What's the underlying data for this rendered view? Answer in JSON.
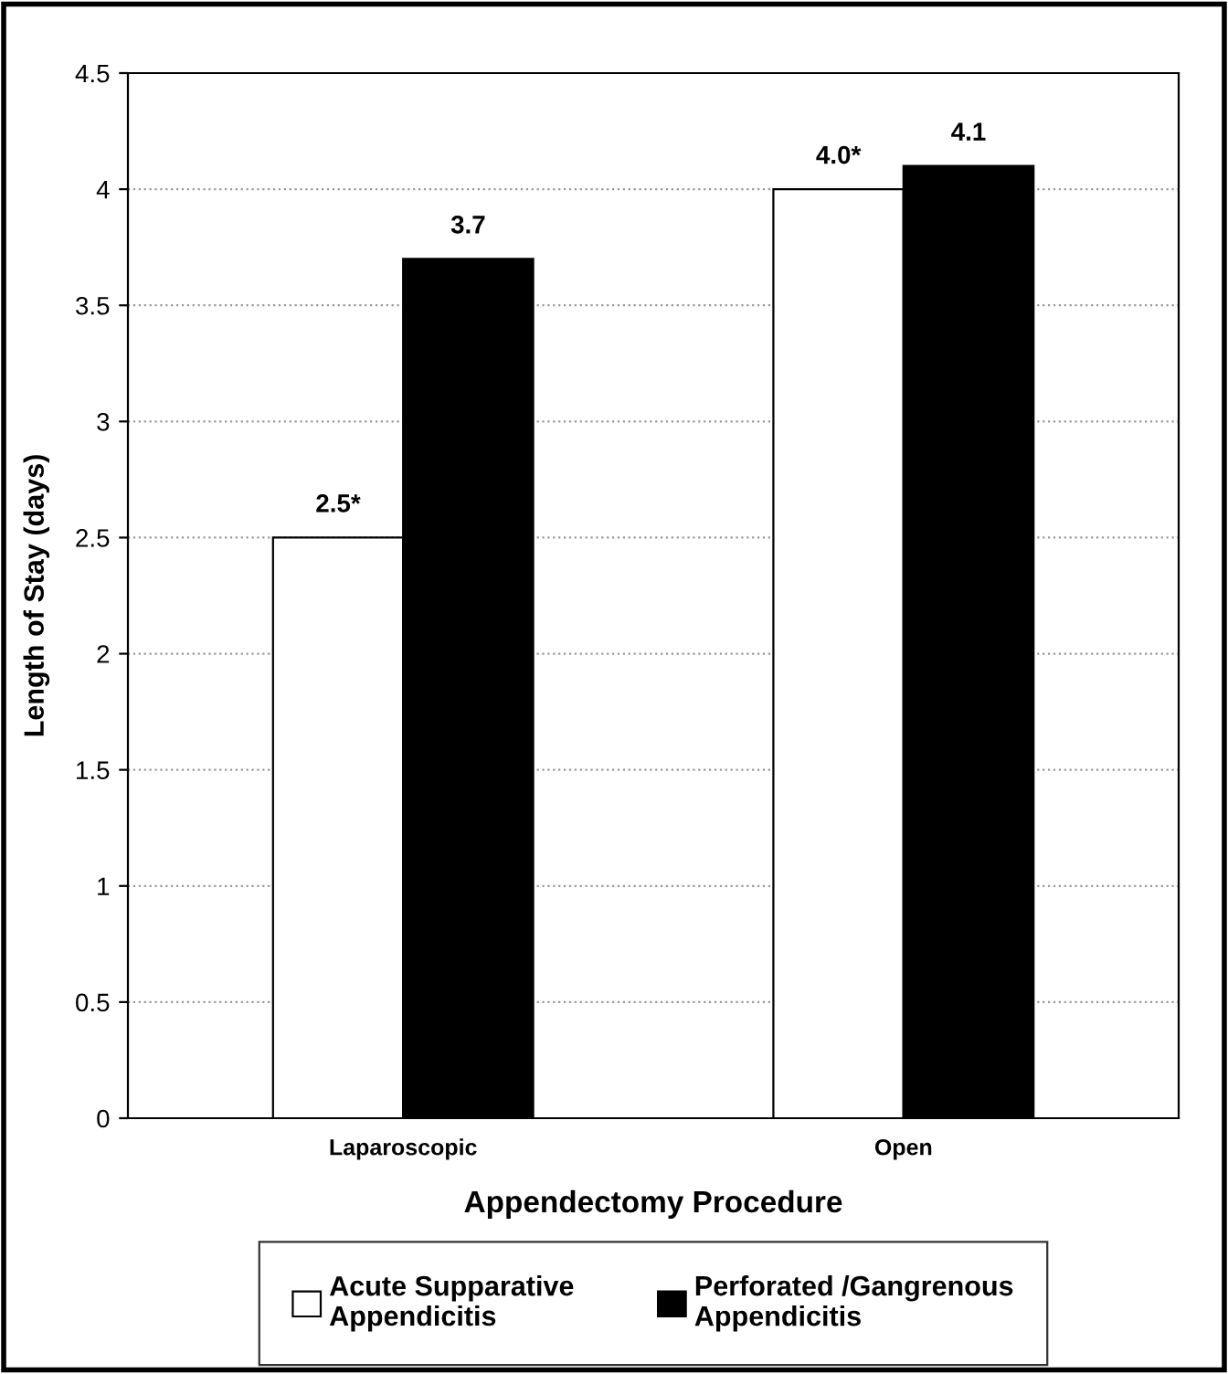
{
  "chart_data": {
    "type": "bar",
    "xlabel": "Appendectomy Procedure",
    "ylabel": "Length of Stay (days)",
    "categories": [
      "Laparoscopic",
      "Open"
    ],
    "series": [
      {
        "name": "Acute Supparative\nAppendicitis",
        "color": "#ffffff",
        "values": [
          2.5,
          4.0
        ],
        "value_labels": [
          "2.5*",
          "4.0*"
        ]
      },
      {
        "name": "Perforated /Gangrenous\nAppendicitis",
        "color": "#000000",
        "values": [
          3.7,
          4.1
        ],
        "value_labels": [
          "3.7",
          "4.1"
        ]
      }
    ],
    "ylim": [
      0,
      4.5
    ],
    "yticks": [
      0,
      0.5,
      1,
      1.5,
      2,
      2.5,
      3,
      3.5,
      4,
      4.5
    ],
    "grid": "y",
    "legend": "bottom"
  }
}
